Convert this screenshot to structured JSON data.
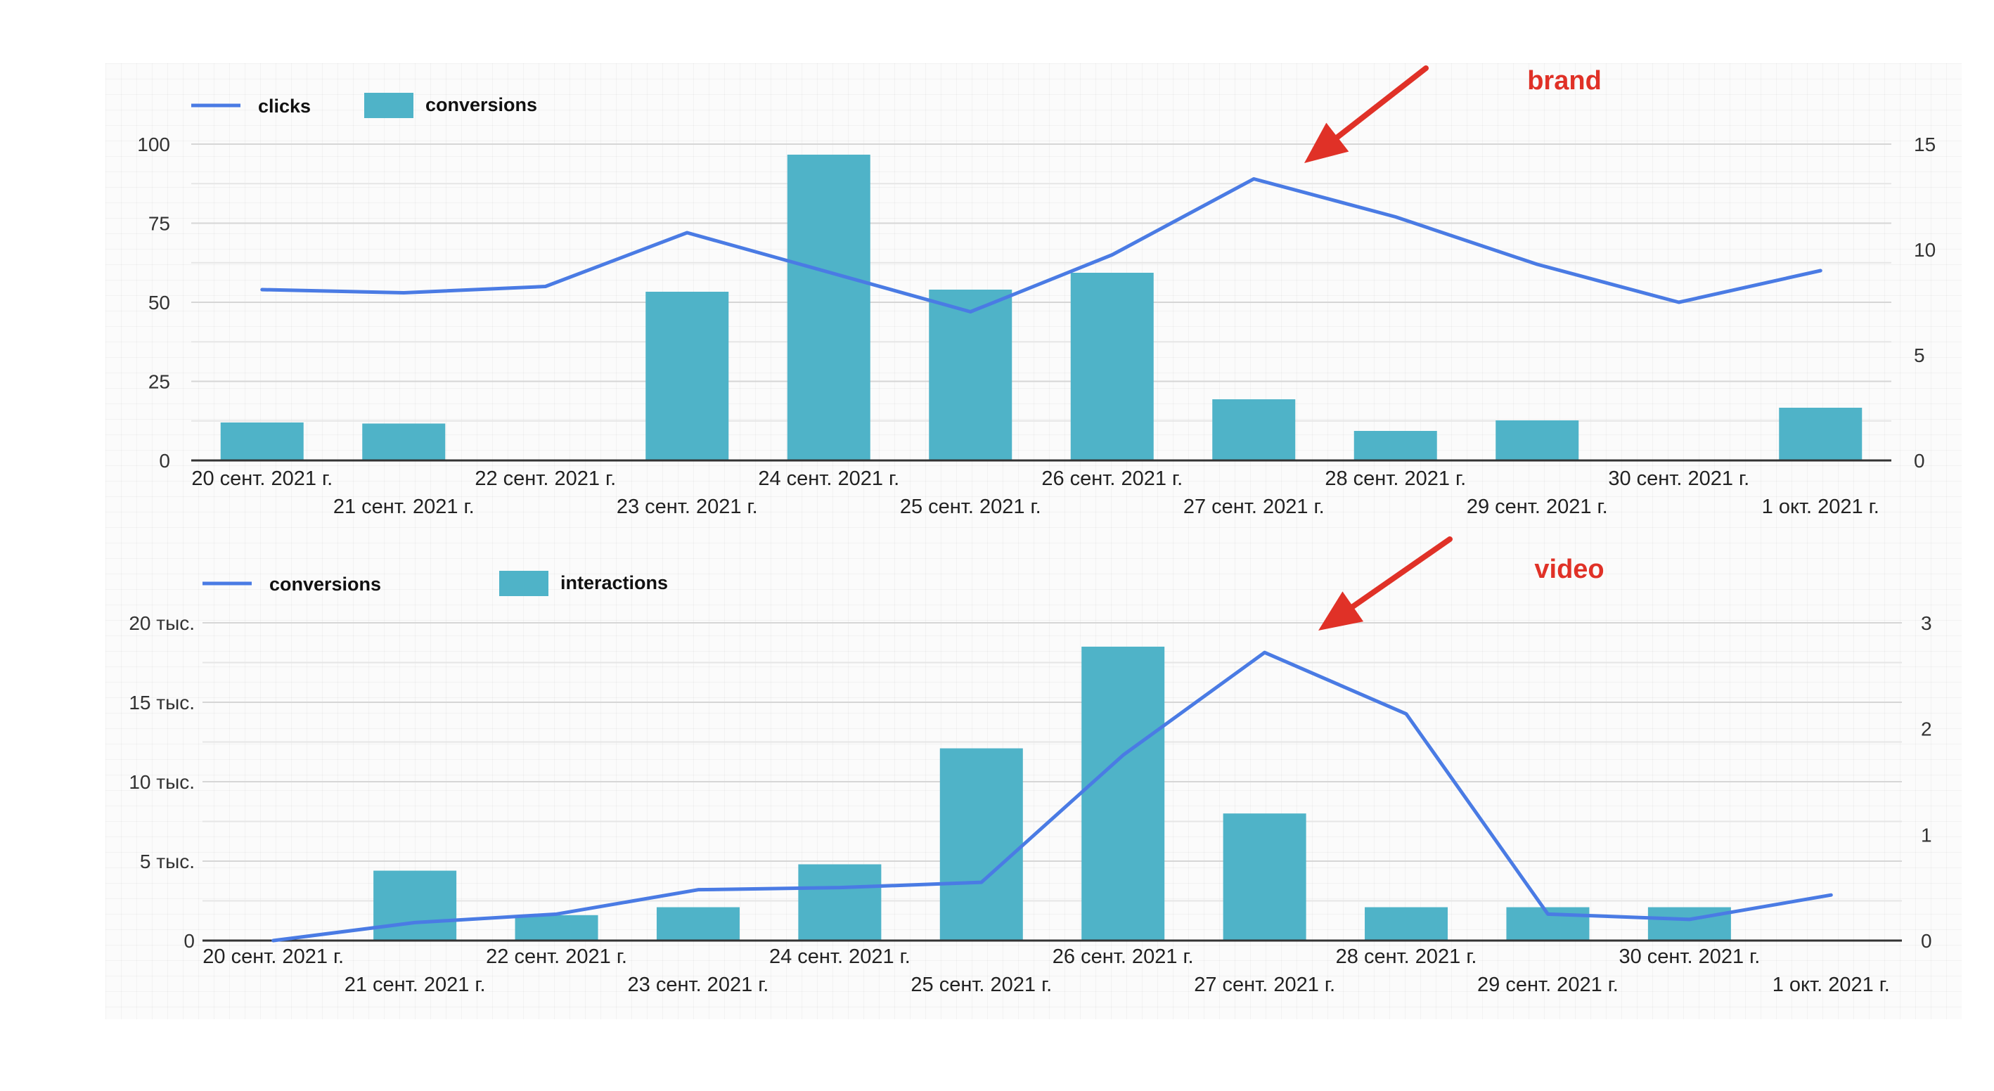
{
  "chart_data": [
    {
      "type": "bar",
      "annotation": "brand",
      "legend": {
        "line": "clicks",
        "bar": "conversions",
        "placement": "top-left"
      },
      "categories": [
        "20 сент. 2021 г.",
        "21 сент. 2021 г.",
        "22 сент. 2021 г.",
        "23 сент. 2021 г.",
        "24 сент. 2021 г.",
        "25 сент. 2021 г.",
        "26 сент. 2021 г.",
        "27 сент. 2021 г.",
        "28 сент. 2021 г.",
        "29 сент. 2021 г.",
        "30 сент. 2021 г.",
        "1 окт. 2021 г."
      ],
      "series": [
        {
          "name": "clicks",
          "type": "line",
          "axis": "left",
          "values": [
            54,
            53,
            55,
            72,
            null,
            47,
            65,
            89,
            77,
            62,
            50,
            60
          ]
        },
        {
          "name": "conversions",
          "type": "bar",
          "axis": "right",
          "values": [
            1.8,
            1.75,
            0,
            8.0,
            14.5,
            8.1,
            8.9,
            2.9,
            1.4,
            1.9,
            0,
            2.5
          ]
        }
      ],
      "left_axis": {
        "ylim": [
          0,
          100
        ],
        "ticks": [
          "0",
          "25",
          "50",
          "75",
          "100"
        ]
      },
      "right_axis": {
        "ylim": [
          0,
          15
        ],
        "ticks": [
          "0",
          "5",
          "10",
          "15"
        ]
      },
      "grid": true,
      "colors": {
        "line": "#4a7be4",
        "bar": "#4fb3c8",
        "annotation": "#e03127"
      }
    },
    {
      "type": "bar",
      "annotation": "video",
      "legend": {
        "line": "conversions",
        "bar": "interactions",
        "placement": "top-left"
      },
      "categories": [
        "20 сент. 2021 г.",
        "21 сент. 2021 г.",
        "22 сент. 2021 г.",
        "23 сент. 2021 г.",
        "24 сент. 2021 г.",
        "25 сент. 2021 г.",
        "26 сент. 2021 г.",
        "27 сент. 2021 г.",
        "28 сент. 2021 г.",
        "29 сент. 2021 г.",
        "30 сент. 2021 г.",
        "1 окт. 2021 г."
      ],
      "series": [
        {
          "name": "conversions",
          "type": "line",
          "axis": "right",
          "values": [
            0,
            0.17,
            0.25,
            0.48,
            0.5,
            0.55,
            1.75,
            2.72,
            2.14,
            0.25,
            0.2,
            0.43
          ]
        },
        {
          "name": "interactions",
          "type": "bar",
          "axis": "left",
          "values": [
            0,
            4400,
            1600,
            2100,
            4800,
            12100,
            18500,
            8000,
            2100,
            2100,
            2100,
            0
          ]
        }
      ],
      "left_axis": {
        "ylim": [
          0,
          20000
        ],
        "ticks": [
          "0",
          "5 тыс.",
          "10 тыс.",
          "15 тыс.",
          "20 тыс."
        ]
      },
      "right_axis": {
        "ylim": [
          0,
          3
        ],
        "ticks": [
          "0",
          "1",
          "2",
          "3"
        ]
      },
      "grid": true,
      "colors": {
        "line": "#4a7be4",
        "bar": "#4fb3c8",
        "annotation": "#e03127"
      }
    }
  ]
}
